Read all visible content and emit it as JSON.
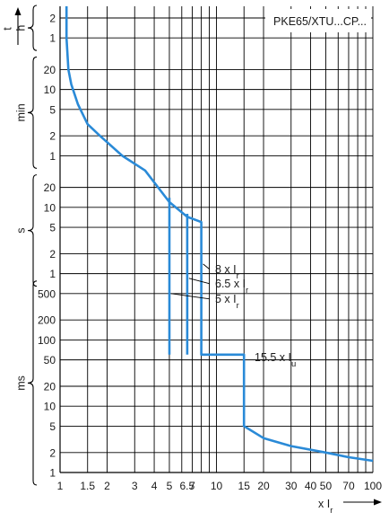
{
  "chart_data": {
    "type": "line",
    "title": "PKE65/XTU...CP...",
    "xlabel": {
      "base": "x I",
      "sub": "r"
    },
    "x_axis": {
      "scale": "log",
      "range": [
        1,
        100
      ],
      "tick_values": [
        1,
        1.5,
        2,
        3,
        4,
        5,
        6,
        7,
        8,
        9,
        10,
        15,
        20,
        30,
        40,
        50,
        60,
        70,
        80,
        90,
        100
      ],
      "tick_labels": [
        {
          "value": 1,
          "label": "1"
        },
        {
          "value": 1.5,
          "label": "1.5"
        },
        {
          "value": 2,
          "label": "2"
        },
        {
          "value": 3,
          "label": "3"
        },
        {
          "value": 4,
          "label": "4"
        },
        {
          "value": 5,
          "label": "5"
        },
        {
          "value": 6.5,
          "label": "6.5"
        },
        {
          "value": 7,
          "label": "7"
        },
        {
          "value": 10,
          "label": "10"
        },
        {
          "value": 15,
          "label": "15"
        },
        {
          "value": 20,
          "label": "20"
        },
        {
          "value": 30,
          "label": "30"
        },
        {
          "value": 40,
          "label": "40"
        },
        {
          "value": 50,
          "label": "50"
        },
        {
          "value": 70,
          "label": "70"
        },
        {
          "value": 100,
          "label": "100"
        }
      ]
    },
    "y_axis": {
      "scale": "log",
      "axis_label": "t",
      "range_ms": [
        1,
        10800000
      ],
      "grid_values_ms": [
        1,
        2,
        5,
        10,
        20,
        50,
        100,
        200,
        500,
        1000,
        2000,
        5000,
        10000,
        20000,
        60000,
        120000,
        300000,
        600000,
        1200000,
        3600000,
        7200000
      ],
      "tick_labels": [
        {
          "value_ms": 1,
          "label": "1"
        },
        {
          "value_ms": 2,
          "label": "2"
        },
        {
          "value_ms": 5,
          "label": "5"
        },
        {
          "value_ms": 10,
          "label": "10"
        },
        {
          "value_ms": 20,
          "label": "20"
        },
        {
          "value_ms": 50,
          "label": "50"
        },
        {
          "value_ms": 100,
          "label": "100"
        },
        {
          "value_ms": 200,
          "label": "200"
        },
        {
          "value_ms": 500,
          "label": "500"
        },
        {
          "value_ms": 1000,
          "label": "1"
        },
        {
          "value_ms": 2000,
          "label": "2"
        },
        {
          "value_ms": 5000,
          "label": "5"
        },
        {
          "value_ms": 10000,
          "label": "10"
        },
        {
          "value_ms": 20000,
          "label": "20"
        },
        {
          "value_ms": 60000,
          "label": "1"
        },
        {
          "value_ms": 120000,
          "label": "2"
        },
        {
          "value_ms": 300000,
          "label": "5"
        },
        {
          "value_ms": 600000,
          "label": "10"
        },
        {
          "value_ms": 1200000,
          "label": "20"
        },
        {
          "value_ms": 3600000,
          "label": "1"
        },
        {
          "value_ms": 7200000,
          "label": "2"
        }
      ],
      "unit_groups": [
        {
          "label": "ms",
          "from_ms": 1,
          "to_ms": 500
        },
        {
          "label": "s",
          "from_ms": 1000,
          "to_ms": 20000
        },
        {
          "label": "min",
          "from_ms": 60000,
          "to_ms": 1200000
        },
        {
          "label": "h",
          "from_ms": 3600000,
          "to_ms": 7200000
        }
      ]
    },
    "grid": true,
    "series": [
      {
        "points": [
          [
            1.1,
            10800000
          ],
          [
            1.1,
            3600000
          ],
          [
            1.13,
            1200000
          ],
          [
            1.18,
            720000
          ],
          [
            1.3,
            360000
          ],
          [
            1.5,
            180000
          ],
          [
            1.8,
            120000
          ],
          [
            2.5,
            60000
          ],
          [
            3.5,
            36000
          ],
          [
            5,
            12000
          ],
          [
            6.5,
            7200
          ],
          [
            8,
            6000
          ],
          [
            8,
            60
          ],
          [
            15,
            60
          ],
          [
            15,
            5
          ],
          [
            20,
            3.3
          ],
          [
            30,
            2.5
          ],
          [
            50,
            2
          ],
          [
            70,
            1.7
          ],
          [
            100,
            1.5
          ]
        ]
      },
      {
        "points": [
          [
            5,
            14000
          ],
          [
            5,
            60
          ]
        ]
      },
      {
        "points": [
          [
            6.5,
            8000
          ],
          [
            6.5,
            60
          ]
        ]
      }
    ],
    "annotations": [
      {
        "base": "8 x I",
        "sub": "r",
        "x": 8,
        "y_ms": 1400
      },
      {
        "base": "6.5 x I",
        "sub": "r",
        "x": 6.5,
        "y_ms": 850
      },
      {
        "base": "5 x I",
        "sub": "r",
        "x": 5,
        "y_ms": 500
      },
      {
        "base": "15.5 x I",
        "sub": "u",
        "x": 15,
        "y_ms": 31
      }
    ],
    "colors": {
      "curve": "#2a8ad7",
      "grid": "#000000",
      "axis": "#000000",
      "text": "#1a1a1a"
    }
  }
}
